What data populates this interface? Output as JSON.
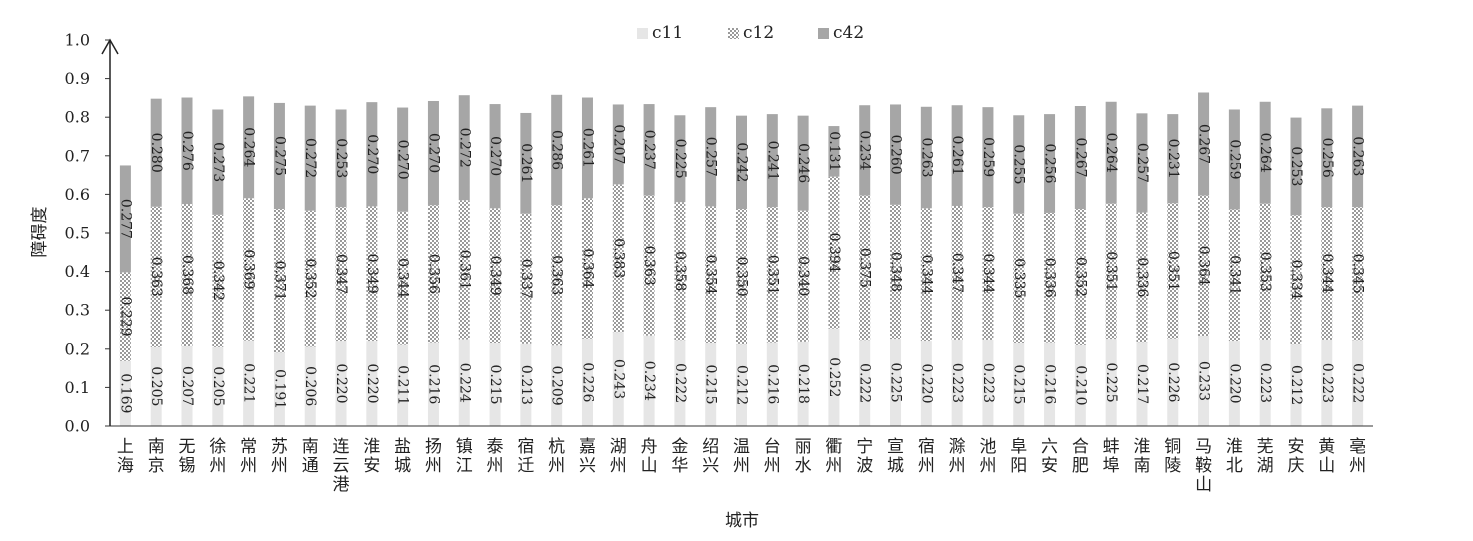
{
  "chart_data": {
    "type": "bar",
    "stacked": true,
    "title": "",
    "xlabel": "城市",
    "ylabel": "障碍度",
    "ylim": [
      0,
      1.0
    ],
    "yticks": [
      "0.0",
      "0.1",
      "0.2",
      "0.3",
      "0.4",
      "0.5",
      "0.6",
      "0.7",
      "0.8",
      "0.9",
      "1.0"
    ],
    "legend_position": "top-center",
    "categories": [
      "上海",
      "南京",
      "无锡",
      "徐州",
      "常州",
      "苏州",
      "南通",
      "连云港",
      "淮安",
      "盐城",
      "扬州",
      "镇江",
      "泰州",
      "宿迁",
      "杭州",
      "嘉兴",
      "湖州",
      "舟山",
      "金华",
      "绍兴",
      "温州",
      "台州",
      "丽水",
      "衢州",
      "宁波",
      "宣城",
      "宿州",
      "滁州",
      "池州",
      "阜阳",
      "六安",
      "合肥",
      "蚌埠",
      "淮南",
      "铜陵",
      "马鞍山",
      "淮北",
      "芜湖",
      "安庆",
      "黄山",
      "亳州"
    ],
    "series": [
      {
        "name": "c11",
        "color": "#e6e6e6",
        "pattern": "solid",
        "values": [
          0.169,
          0.205,
          0.207,
          0.205,
          0.221,
          0.191,
          0.206,
          0.22,
          0.22,
          0.211,
          0.216,
          0.224,
          0.215,
          0.213,
          0.209,
          0.226,
          0.243,
          0.234,
          0.222,
          0.215,
          0.212,
          0.216,
          0.218,
          0.252,
          0.222,
          0.225,
          0.22,
          0.223,
          0.223,
          0.215,
          0.216,
          0.21,
          0.225,
          0.217,
          0.226,
          0.233,
          0.22,
          0.223,
          0.212,
          0.223,
          0.222
        ],
        "labels": [
          "0.169",
          "0.205",
          "0.207",
          "0.205",
          "0.221",
          "0.191",
          "0.206",
          "0.220",
          "0.220",
          "0.211",
          "0.216",
          "0.224",
          "0.215",
          "0.213",
          "0.209",
          "0.226",
          "0.243",
          "0.234",
          "0.222",
          "0.215",
          "0.212",
          "0.216",
          "0.218",
          "0.252",
          "0.222",
          "0.225",
          "0.220",
          "0.223",
          "0.223",
          "0.215",
          "0.216",
          "0.210",
          "0.225",
          "0.217",
          "0.226",
          "0.233",
          "0.220",
          "0.223",
          "0.212",
          "0.223",
          "0.222"
        ]
      },
      {
        "name": "c12",
        "color": "#d0d0d0",
        "pattern": "checker",
        "values": [
          0.229,
          0.363,
          0.368,
          0.342,
          0.369,
          0.371,
          0.352,
          0.347,
          0.349,
          0.344,
          0.356,
          0.361,
          0.349,
          0.337,
          0.363,
          0.364,
          0.383,
          0.363,
          0.358,
          0.354,
          0.35,
          0.351,
          0.34,
          0.394,
          0.375,
          0.348,
          0.344,
          0.347,
          0.344,
          0.335,
          0.336,
          0.352,
          0.351,
          0.336,
          0.351,
          0.364,
          0.341,
          0.353,
          0.334,
          0.344,
          0.345
        ],
        "labels": [
          "0.229",
          "0.363",
          "0.368",
          "0.342",
          "0.369",
          "0.371",
          "0.352",
          "0.347",
          "0.349",
          "0.344",
          "0.356",
          "0.361",
          "0.349",
          "0.337",
          "0.363",
          "0.364",
          "0.383",
          "0.363",
          "0.358",
          "0.354",
          "0.350",
          "0.351",
          "0.340",
          "0.394",
          "0.375",
          "0.348",
          "0.344",
          "0.347",
          "0.344",
          "0.335",
          "0.336",
          "0.352",
          "0.351",
          "0.336",
          "0.351",
          "0.364",
          "0.341",
          "0.353",
          "0.334",
          "0.344",
          "0.345"
        ]
      },
      {
        "name": "c42",
        "color": "#a6a6a6",
        "pattern": "solid",
        "values": [
          0.277,
          0.28,
          0.276,
          0.273,
          0.264,
          0.275,
          0.272,
          0.253,
          0.27,
          0.27,
          0.27,
          0.272,
          0.27,
          0.261,
          0.286,
          0.261,
          0.207,
          0.237,
          0.225,
          0.257,
          0.242,
          0.241,
          0.246,
          0.131,
          0.234,
          0.26,
          0.263,
          0.261,
          0.259,
          0.255,
          0.256,
          0.267,
          0.264,
          0.257,
          0.231,
          0.267,
          0.259,
          0.264,
          0.253,
          0.256,
          0.263
        ],
        "labels": [
          "0.277",
          "0.280",
          "0.276",
          "0.273",
          "0.264",
          "0.275",
          "0.272",
          "0.253",
          "0.270",
          "0.270",
          "0.270",
          "0.272",
          "0.270",
          "0.261",
          "0.286",
          "0.261",
          "0.207",
          "0.237",
          "0.225",
          "0.257",
          "0.242",
          "0.241",
          "0.246",
          "0.131",
          "0.234",
          "0.260",
          "0.263",
          "0.261",
          "0.259",
          "0.255",
          "0.256",
          "0.267",
          "0.264",
          "0.257",
          "0.231",
          "0.267",
          "0.259",
          "0.264",
          "0.253",
          "0.256",
          "0.263"
        ]
      }
    ]
  }
}
